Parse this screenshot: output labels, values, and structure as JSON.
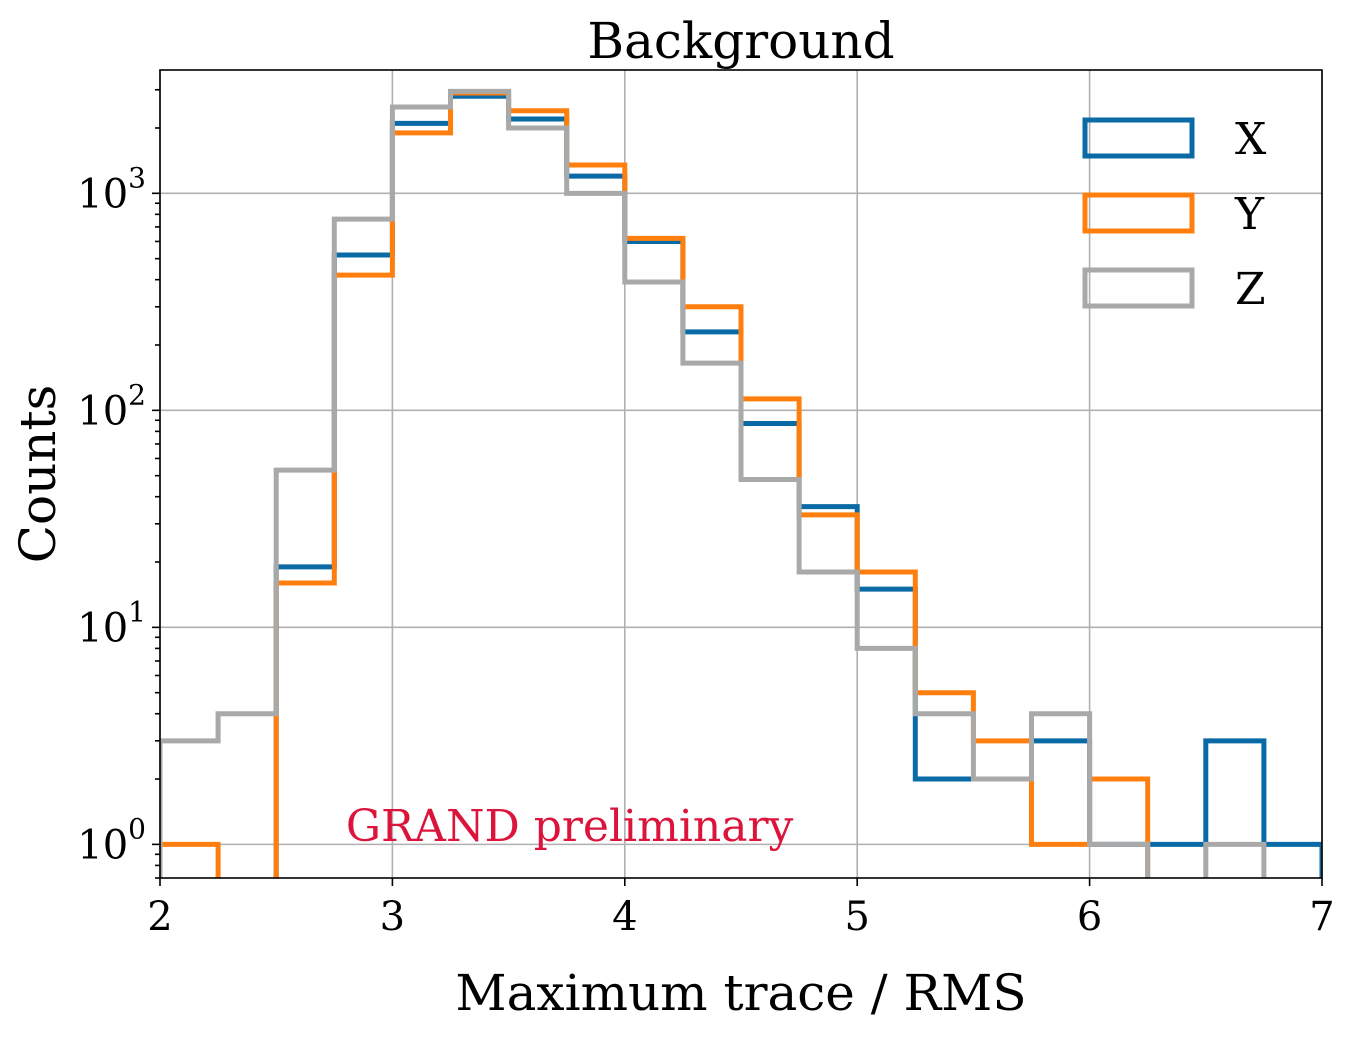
{
  "chart_data": {
    "type": "histogram",
    "title": "Background",
    "xlabel": "Maximum trace / RMS",
    "ylabel": "Counts",
    "xlim": [
      2,
      7
    ],
    "ylim": [
      0.7,
      3700
    ],
    "yscale": "log",
    "grid": true,
    "legend_position": "top-right",
    "xticks": [
      2,
      3,
      4,
      5,
      6,
      7
    ],
    "xtick_labels": [
      "2",
      "3",
      "4",
      "5",
      "6",
      "7"
    ],
    "yticks": [
      1,
      10,
      100,
      1000
    ],
    "ytick_labels": [
      {
        "base": "10",
        "exp": "0"
      },
      {
        "base": "10",
        "exp": "1"
      },
      {
        "base": "10",
        "exp": "2"
      },
      {
        "base": "10",
        "exp": "3"
      }
    ],
    "bin_edges": [
      2.0,
      2.25,
      2.5,
      2.75,
      3.0,
      3.25,
      3.5,
      3.75,
      4.0,
      4.25,
      4.5,
      4.75,
      5.0,
      5.25,
      5.5,
      5.75,
      6.0,
      6.25,
      6.5,
      6.75,
      7.0
    ],
    "series": [
      {
        "name": "X",
        "color": "#0a6aa5",
        "values": [
          0,
          0,
          19,
          520,
          2100,
          2800,
          2200,
          1200,
          600,
          230,
          87,
          36,
          15,
          2,
          2,
          3,
          1,
          1,
          3,
          1
        ]
      },
      {
        "name": "Y",
        "color": "#ff7f0e",
        "values": [
          1,
          0,
          16,
          420,
          1900,
          2900,
          2400,
          1350,
          620,
          300,
          113,
          33,
          18,
          5,
          3,
          1,
          2,
          0,
          0,
          0
        ]
      },
      {
        "name": "Z",
        "color": "#a9a9a9",
        "values": [
          3,
          4,
          53,
          760,
          2500,
          2950,
          2000,
          1000,
          390,
          165,
          48,
          18,
          8,
          4,
          2,
          4,
          1,
          0,
          1,
          0
        ]
      }
    ],
    "annotation": {
      "text": "GRAND preliminary",
      "color": "#dc143c",
      "x": 2.8,
      "y": 1.2
    }
  }
}
